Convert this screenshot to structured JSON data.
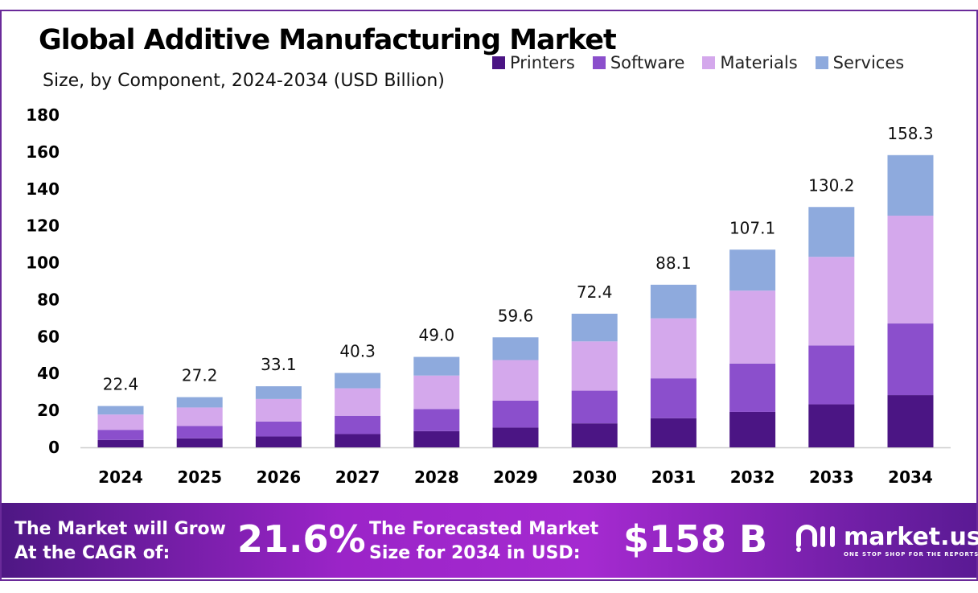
{
  "chart_data": {
    "type": "bar",
    "stacked": true,
    "title": "Global Additive Manufacturing Market",
    "subtitle": "Size, by Component, 2024-2034 (USD Billion)",
    "categories": [
      "2024",
      "2025",
      "2026",
      "2027",
      "2028",
      "2029",
      "2030",
      "2031",
      "2032",
      "2033",
      "2034"
    ],
    "series": [
      {
        "name": "Printers",
        "color": "#4b1584",
        "values": [
          4.0,
          4.9,
          5.9,
          7.2,
          8.8,
          10.7,
          13.0,
          15.8,
          19.2,
          23.3,
          28.3
        ]
      },
      {
        "name": "Software",
        "color": "#8b4fcc",
        "values": [
          5.5,
          6.7,
          8.1,
          9.9,
          12.0,
          14.6,
          17.7,
          21.6,
          26.2,
          31.9,
          38.8
        ]
      },
      {
        "name": "Materials",
        "color": "#d4a8ec",
        "values": [
          8.3,
          10.0,
          12.2,
          14.9,
          18.1,
          22.0,
          26.7,
          32.5,
          39.5,
          48.0,
          58.4
        ]
      },
      {
        "name": "Services",
        "color": "#8eaadd",
        "values": [
          4.6,
          5.6,
          6.9,
          8.3,
          10.1,
          12.3,
          15.0,
          18.2,
          22.2,
          27.0,
          32.8
        ]
      }
    ],
    "totals": [
      "22.4",
      "27.2",
      "33.1",
      "40.3",
      "49.0",
      "59.6",
      "72.4",
      "88.1",
      "107.1",
      "130.2",
      "158.3"
    ],
    "ylim": [
      0,
      180
    ],
    "yticks": [
      "0",
      "20",
      "40",
      "60",
      "80",
      "100",
      "120",
      "140",
      "160",
      "180"
    ],
    "grid": false,
    "legend": "top-right"
  },
  "banner": {
    "cagr_label_1": "The Market will Grow",
    "cagr_label_2": "At the CAGR of:",
    "cagr_value": "21.6%",
    "forecast_label_1": "The Forecasted Market",
    "forecast_label_2": "Size for 2034 in USD:",
    "forecast_value": "$158 B",
    "logo_name": "market.us",
    "logo_tagline": "ONE STOP SHOP FOR THE REPORTS"
  }
}
